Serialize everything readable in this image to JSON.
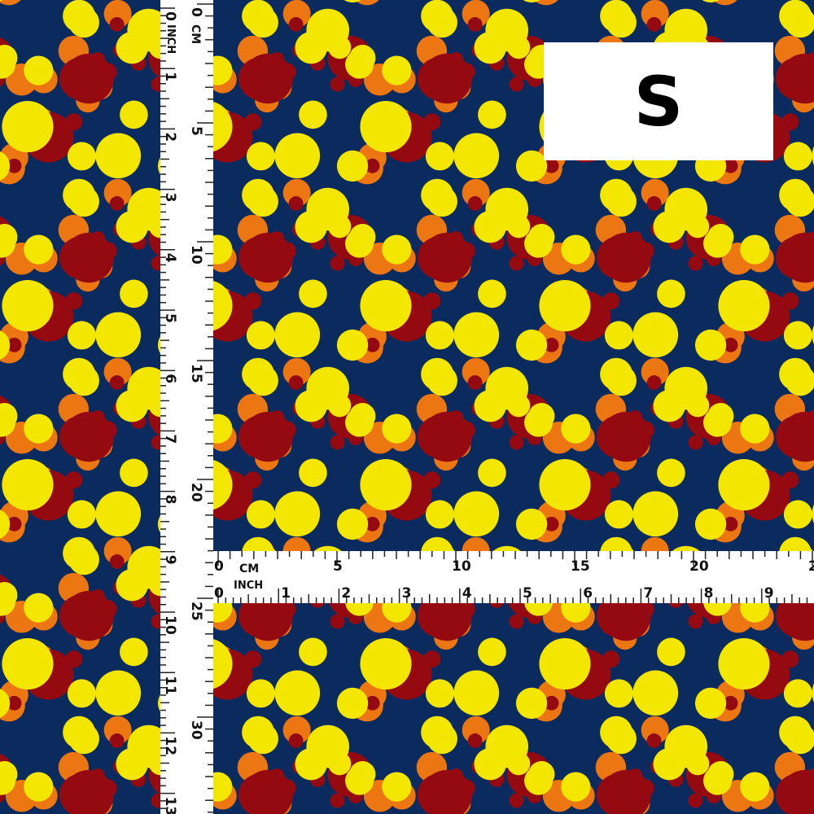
{
  "colors": {
    "background": "#0b2b5e",
    "yellow": "#f3e600",
    "red": "#940a10",
    "orange": "#ec7612",
    "ruler": "#ffffff",
    "tick": "#222222"
  },
  "size_label": "S",
  "vertical_ruler": {
    "cm_unit": "CM",
    "inch_unit": "INCH",
    "cm_labels": [
      "0",
      "5",
      "10",
      "15",
      "20",
      "25",
      "30"
    ],
    "inch_labels": [
      "0",
      "1",
      "2",
      "3",
      "4",
      "5",
      "6",
      "7",
      "8",
      "9",
      "10",
      "11",
      "12",
      "13"
    ]
  },
  "horizontal_ruler": {
    "cm_unit": "CM",
    "inch_unit": "INCH",
    "cm_labels": [
      "0",
      "5",
      "10",
      "15",
      "20",
      "2"
    ],
    "inch_labels": [
      "0",
      "1",
      "2",
      "3",
      "4",
      "5",
      "6",
      "7",
      "8",
      "9"
    ]
  }
}
